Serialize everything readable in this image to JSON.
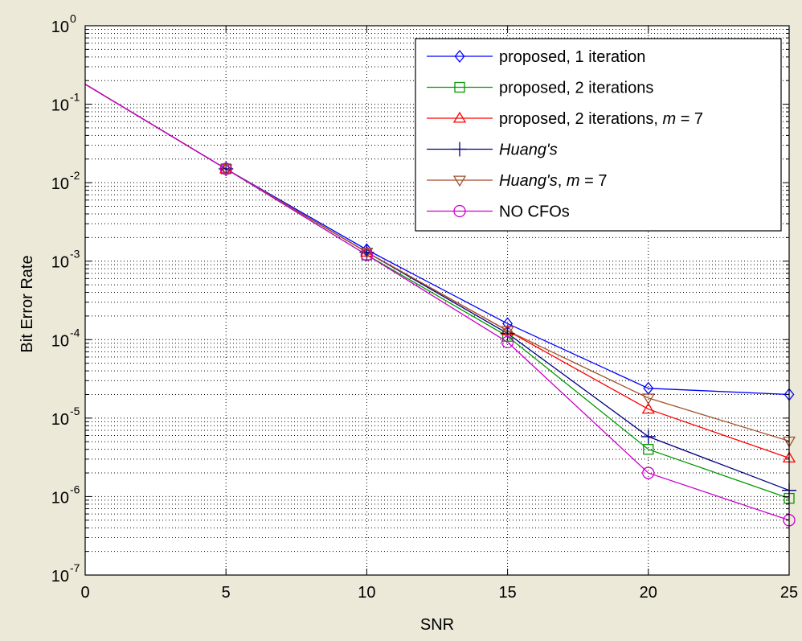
{
  "chart_data": {
    "type": "line",
    "xlabel": "SNR",
    "ylabel": "Bit Error Rate",
    "x_ticks": [
      "0",
      "5",
      "10",
      "15",
      "20",
      "25"
    ],
    "y_ticks": [
      {
        "base": "10",
        "exp": "0"
      },
      {
        "base": "10",
        "exp": "-1"
      },
      {
        "base": "10",
        "exp": "-2"
      },
      {
        "base": "10",
        "exp": "-3"
      },
      {
        "base": "10",
        "exp": "-4"
      },
      {
        "base": "10",
        "exp": "-5"
      },
      {
        "base": "10",
        "exp": "-6"
      },
      {
        "base": "10",
        "exp": "-7"
      }
    ],
    "xlim": [
      0,
      25
    ],
    "ylim": [
      1e-07,
      1
    ],
    "yscale": "log",
    "grid": true,
    "legend_position": "top-right",
    "x": [
      0,
      5,
      10,
      15,
      20,
      25
    ],
    "series": [
      {
        "name": "proposed, 1 iteration",
        "name_parts": [
          {
            "t": "proposed, 1 iteration",
            "i": false
          }
        ],
        "color": "#0000ff",
        "marker": "diamond",
        "values": [
          0.18,
          0.015,
          0.0014,
          0.00016,
          2.4e-05,
          2e-05
        ]
      },
      {
        "name": "proposed, 2 iterations",
        "name_parts": [
          {
            "t": "proposed, 2 iterations",
            "i": false
          }
        ],
        "color": "#009900",
        "marker": "square",
        "values": [
          0.18,
          0.015,
          0.0012,
          0.00011,
          4e-06,
          9.5e-07
        ]
      },
      {
        "name": "proposed, 2 iterations, m = 7",
        "name_parts": [
          {
            "t": "proposed, 2 iterations, ",
            "i": false
          },
          {
            "t": "m",
            "i": true
          },
          {
            "t": " = 7",
            "i": false
          }
        ],
        "color": "#ff0000",
        "marker": "triangle-up",
        "values": [
          0.18,
          0.015,
          0.0013,
          0.00013,
          1.3e-05,
          3.1e-06
        ]
      },
      {
        "name": "Huang's",
        "name_parts": [
          {
            "t": "Huang's",
            "i": true
          }
        ],
        "color": "#000080",
        "marker": "plus",
        "values": [
          0.18,
          0.015,
          0.0013,
          0.00012,
          5.8e-06,
          1.2e-06
        ]
      },
      {
        "name": "Huang's, m = 7",
        "name_parts": [
          {
            "t": "Huang's",
            "i": true
          },
          {
            "t": ", ",
            "i": false
          },
          {
            "t": "m",
            "i": true
          },
          {
            "t": " = 7",
            "i": false
          }
        ],
        "color": "#a0522d",
        "marker": "triangle-down",
        "values": [
          0.18,
          0.015,
          0.0013,
          0.00013,
          1.8e-05,
          5.1e-06
        ]
      },
      {
        "name": "NO CFOs",
        "name_parts": [
          {
            "t": "NO CFOs",
            "i": false
          }
        ],
        "color": "#cc00cc",
        "marker": "circle",
        "values": [
          0.18,
          0.015,
          0.0012,
          9.3e-05,
          2e-06,
          5e-07
        ]
      }
    ]
  }
}
